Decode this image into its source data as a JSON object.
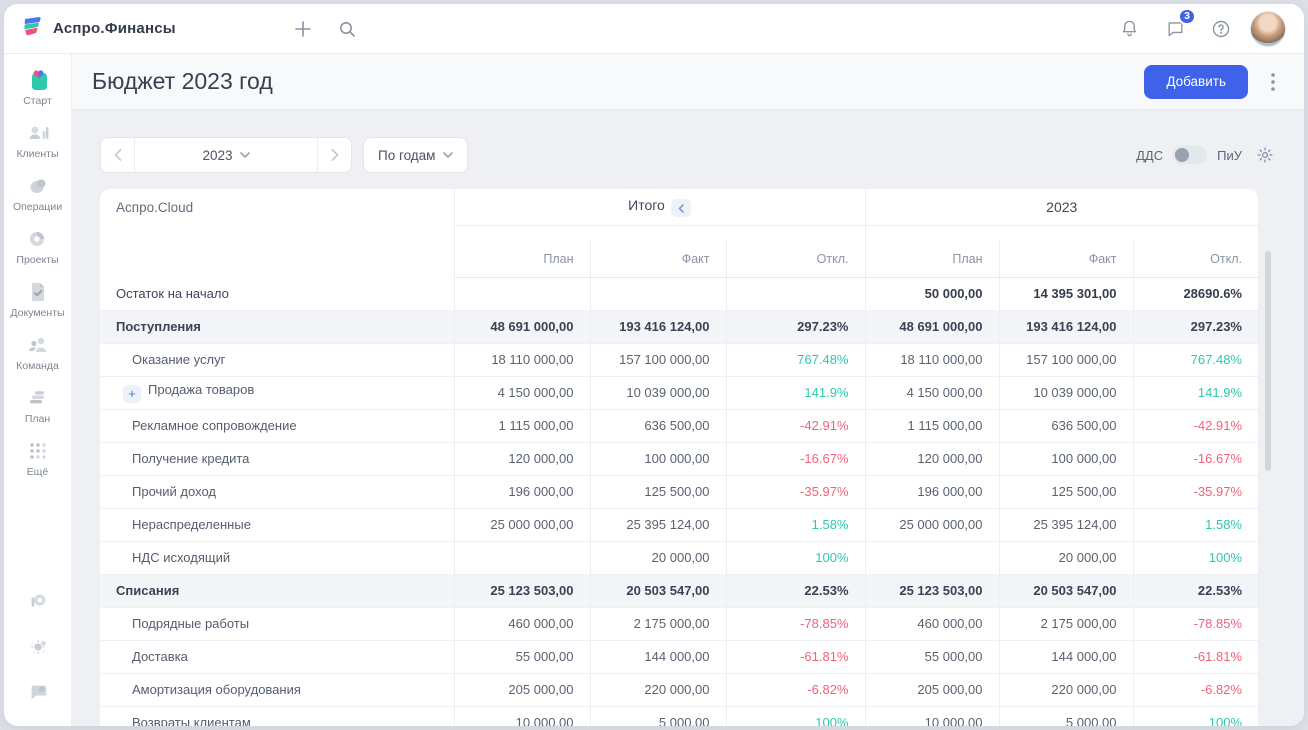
{
  "topbar": {
    "brand": "Аспро.Финансы",
    "chat_badge": "3"
  },
  "sidebar": {
    "items": [
      {
        "key": "start",
        "label": "Старт",
        "icon": "start"
      },
      {
        "key": "clients",
        "label": "Клиенты",
        "icon": "clients"
      },
      {
        "key": "operations",
        "label": "Операции",
        "icon": "operations"
      },
      {
        "key": "projects",
        "label": "Проекты",
        "icon": "projects"
      },
      {
        "key": "documents",
        "label": "Документы",
        "icon": "documents"
      },
      {
        "key": "team",
        "label": "Команда",
        "icon": "team"
      },
      {
        "key": "plan",
        "label": "План",
        "icon": "plan"
      },
      {
        "key": "more",
        "label": "Ещё",
        "icon": "more"
      }
    ]
  },
  "page": {
    "title": "Бюджет 2023 год",
    "add_button": "Добавить"
  },
  "toolbar": {
    "year": "2023",
    "period_mode": "По годам",
    "toggle_left": "ДДС",
    "toggle_right": "ПиУ",
    "toggle_state": "off"
  },
  "table": {
    "entity": "Аспро.Cloud",
    "group_total": "Итого",
    "group_year": "2023",
    "subheaders": [
      "План",
      "Факт",
      "Откл."
    ],
    "rows": [
      {
        "name": "Остаток на начало",
        "level": 0,
        "section": false,
        "opening": true,
        "expandable": false,
        "cells": [
          "",
          "",
          "",
          "50 000,00",
          "14 395 301,00",
          "28690.6%"
        ]
      },
      {
        "name": "Поступления",
        "level": 0,
        "section": true,
        "expandable": false,
        "cells": [
          "48 691 000,00",
          "193 416 124,00",
          "297.23%",
          "48 691 000,00",
          "193 416 124,00",
          "297.23%"
        ]
      },
      {
        "name": "Оказание услуг",
        "level": 1,
        "section": false,
        "expandable": false,
        "cells": [
          "18 110 000,00",
          "157 100 000,00",
          "767.48%",
          "18 110 000,00",
          "157 100 000,00",
          "767.48%"
        ]
      },
      {
        "name": "Продажа товаров",
        "level": 1,
        "section": false,
        "expandable": true,
        "cells": [
          "4 150 000,00",
          "10 039 000,00",
          "141.9%",
          "4 150 000,00",
          "10 039 000,00",
          "141.9%"
        ]
      },
      {
        "name": "Рекламное сопровождение",
        "level": 1,
        "section": false,
        "expandable": false,
        "cells": [
          "1 115 000,00",
          "636 500,00",
          "-42.91%",
          "1 115 000,00",
          "636 500,00",
          "-42.91%"
        ]
      },
      {
        "name": "Получение кредита",
        "level": 1,
        "section": false,
        "expandable": false,
        "cells": [
          "120 000,00",
          "100 000,00",
          "-16.67%",
          "120 000,00",
          "100 000,00",
          "-16.67%"
        ]
      },
      {
        "name": "Прочий доход",
        "level": 1,
        "section": false,
        "expandable": false,
        "cells": [
          "196 000,00",
          "125 500,00",
          "-35.97%",
          "196 000,00",
          "125 500,00",
          "-35.97%"
        ]
      },
      {
        "name": "Нераспределенные",
        "level": 1,
        "section": false,
        "expandable": false,
        "cells": [
          "25 000 000,00",
          "25 395 124,00",
          "1.58%",
          "25 000 000,00",
          "25 395 124,00",
          "1.58%"
        ]
      },
      {
        "name": "НДС исходящий",
        "level": 1,
        "section": false,
        "expandable": false,
        "cells": [
          "",
          "20 000,00",
          "100%",
          "",
          "20 000,00",
          "100%"
        ]
      },
      {
        "name": "Списания",
        "level": 0,
        "section": true,
        "expandable": false,
        "cells": [
          "25 123 503,00",
          "20 503 547,00",
          "22.53%",
          "25 123 503,00",
          "20 503 547,00",
          "22.53%"
        ]
      },
      {
        "name": "Подрядные работы",
        "level": 1,
        "section": false,
        "expandable": false,
        "cells": [
          "460 000,00",
          "2 175 000,00",
          "-78.85%",
          "460 000,00",
          "2 175 000,00",
          "-78.85%"
        ]
      },
      {
        "name": "Доставка",
        "level": 1,
        "section": false,
        "expandable": false,
        "cells": [
          "55 000,00",
          "144 000,00",
          "-61.81%",
          "55 000,00",
          "144 000,00",
          "-61.81%"
        ]
      },
      {
        "name": "Амортизация оборудования",
        "level": 1,
        "section": false,
        "expandable": false,
        "cells": [
          "205 000,00",
          "220 000,00",
          "-6.82%",
          "205 000,00",
          "220 000,00",
          "-6.82%"
        ]
      },
      {
        "name": "Возвраты клиентам",
        "level": 1,
        "section": false,
        "expandable": false,
        "cells": [
          "10 000,00",
          "5 000,00",
          "100%",
          "10 000,00",
          "5 000,00",
          "100%"
        ]
      }
    ]
  },
  "colors": {
    "accent_blue": "#3f62ea",
    "positive_teal": "#2dc9ac",
    "negative_red": "#f4607c"
  }
}
